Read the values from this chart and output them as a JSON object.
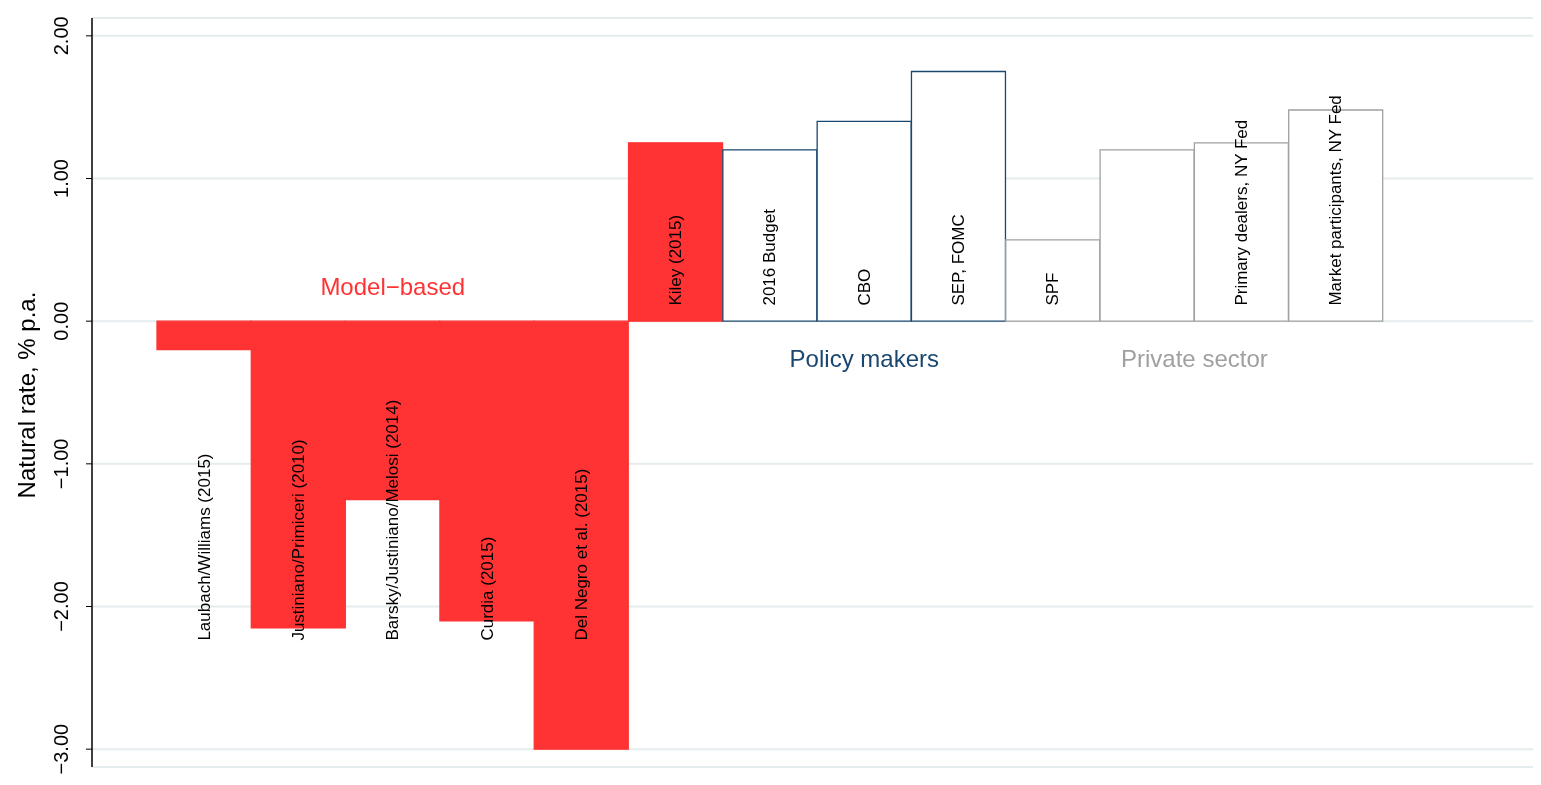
{
  "chart_data": {
    "type": "bar",
    "ylabel": "Natural rate, % p.a.",
    "categories": [
      "Laubach/Williams (2015)",
      "Justiniano/Primiceri (2010)",
      "Barsky/Justiniano/Melosi (2014)",
      "Curdia (2015)",
      "Del Negro et al. (2015)",
      "Kiley (2015)",
      "2016 Budget",
      "CBO",
      "SEP, FOMC",
      "SPF",
      null,
      "Primary dealers, NY Fed",
      "Market participants, NY Fed"
    ],
    "series": [
      {
        "name": "Model−based",
        "color": "#ff3333",
        "colors": [
          "#ff3333",
          "#ff3333",
          "#ff3333",
          "#ff3333",
          "#ff3333",
          "#ff3333",
          null,
          null,
          null,
          null,
          null,
          null,
          null
        ],
        "values": [
          -0.2,
          -2.15,
          -1.25,
          -2.1,
          -3.0,
          1.25,
          null,
          null,
          null,
          null,
          null,
          null,
          null
        ]
      },
      {
        "name": "Policy makers",
        "color": "#1a476f",
        "colors": [
          null,
          null,
          null,
          null,
          null,
          null,
          "#ffffff",
          "#ffffff",
          "#ffffff",
          null,
          null,
          null,
          null
        ],
        "values": [
          null,
          null,
          null,
          null,
          null,
          null,
          1.2,
          1.4,
          1.75,
          null,
          null,
          null,
          null
        ]
      },
      {
        "name": "Private sector",
        "color": "#a0a0a0",
        "colors": [
          null,
          null,
          null,
          null,
          null,
          null,
          null,
          null,
          null,
          "#ffffff",
          "#ffffff",
          "#ffffff",
          "#ffffff"
        ],
        "values": [
          null,
          null,
          null,
          null,
          null,
          null,
          null,
          null,
          null,
          0.57,
          1.2,
          1.25,
          1.48
        ]
      }
    ],
    "stacked": true,
    "ylim": [
      -3.125,
      2.125
    ],
    "yticks": [
      {
        "value": 2,
        "label": "2.00"
      },
      {
        "value": 1,
        "label": "1.00"
      },
      {
        "value": 0,
        "label": "0.00"
      },
      {
        "value": -1,
        "label": "−1.00"
      },
      {
        "value": -2,
        "label": "−2.00"
      },
      {
        "value": -3,
        "label": "−3.00"
      }
    ],
    "grid": "y"
  }
}
